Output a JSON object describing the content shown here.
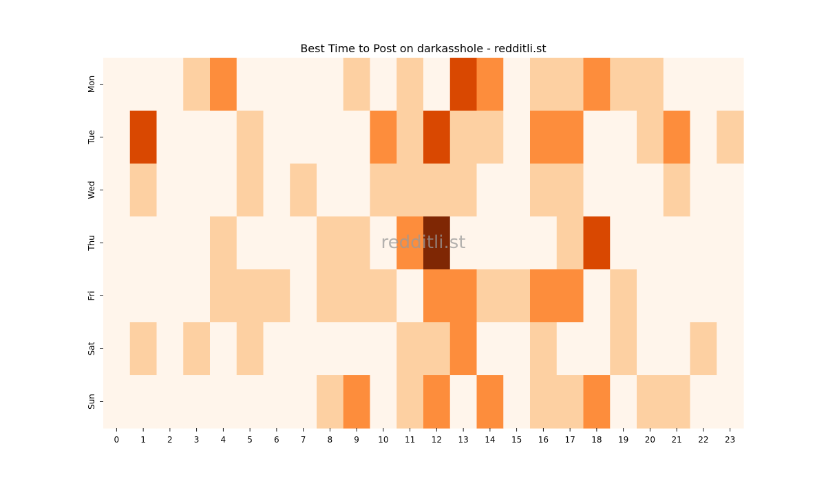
{
  "chart_data": {
    "type": "heatmap",
    "title": "Best Time to Post on darkasshole - redditli.st",
    "xlabel": "",
    "ylabel": "",
    "watermark": "redditli.st",
    "x_categories": [
      "0",
      "1",
      "2",
      "3",
      "4",
      "5",
      "6",
      "7",
      "8",
      "9",
      "10",
      "11",
      "12",
      "13",
      "14",
      "15",
      "16",
      "17",
      "18",
      "19",
      "20",
      "21",
      "22",
      "23"
    ],
    "y_categories": [
      "Mon",
      "Tue",
      "Wed",
      "Thu",
      "Fri",
      "Sat",
      "Sun"
    ],
    "colormap": [
      "#fff5eb",
      "#fdd0a2",
      "#fd8d3c",
      "#d94801",
      "#7f2704"
    ],
    "value_range": [
      0,
      4
    ],
    "values": [
      [
        0,
        0,
        0,
        1,
        2,
        0,
        0,
        0,
        0,
        1,
        0,
        1,
        0,
        3,
        2,
        0,
        1,
        1,
        2,
        1,
        1,
        0,
        0,
        0
      ],
      [
        0,
        3,
        0,
        0,
        0,
        1,
        0,
        0,
        0,
        0,
        2,
        1,
        3,
        1,
        1,
        0,
        2,
        2,
        0,
        0,
        1,
        2,
        0,
        1
      ],
      [
        0,
        1,
        0,
        0,
        0,
        1,
        0,
        1,
        0,
        0,
        1,
        1,
        1,
        1,
        0,
        0,
        1,
        1,
        0,
        0,
        0,
        1,
        0,
        0
      ],
      [
        0,
        0,
        0,
        0,
        1,
        0,
        0,
        0,
        1,
        1,
        0,
        2,
        4,
        0,
        0,
        0,
        0,
        1,
        3,
        0,
        0,
        0,
        0,
        0
      ],
      [
        0,
        0,
        0,
        0,
        1,
        1,
        1,
        0,
        1,
        1,
        1,
        0,
        2,
        2,
        1,
        1,
        2,
        2,
        0,
        1,
        0,
        0,
        0,
        0
      ],
      [
        0,
        1,
        0,
        1,
        0,
        1,
        0,
        0,
        0,
        0,
        0,
        1,
        1,
        2,
        0,
        0,
        1,
        0,
        0,
        1,
        0,
        0,
        1,
        0
      ],
      [
        0,
        0,
        0,
        0,
        0,
        0,
        0,
        0,
        1,
        2,
        0,
        1,
        2,
        0,
        2,
        0,
        1,
        1,
        2,
        0,
        1,
        1,
        0,
        0
      ]
    ]
  }
}
